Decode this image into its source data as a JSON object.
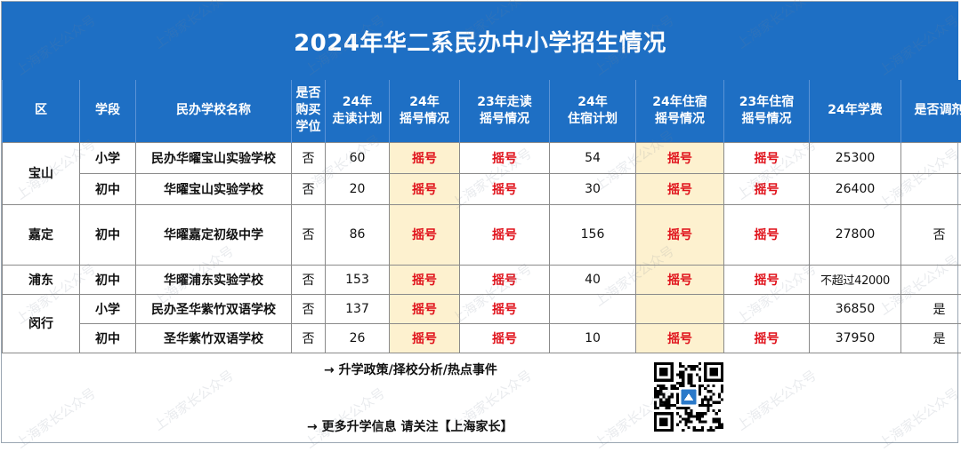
{
  "title": "2024年华二系民办中小学招生情况",
  "table": {
    "headers": {
      "district": "区",
      "stage": "学段",
      "school": "民办学校名称",
      "purchase": "是否\n购买\n学位",
      "walk_plan": "24年\n走读计划",
      "lottery24": "24年\n摇号情况",
      "walk_lottery23": "23年走读\n摇号情况",
      "board_plan": "24年\n住宿计划",
      "board_lottery24": "24年住宿\n摇号情况",
      "board_lottery23": "23年住宿\n摇号情况",
      "fee": "24年学费",
      "adjust": "是否调剂"
    },
    "rows": [
      {
        "district": "宝山",
        "stage": "小学",
        "school": "民办华曜宝山实验学校",
        "purchase": "否",
        "walk_plan": "60",
        "lottery24": "摇号",
        "walk_lottery23": "摇号",
        "board_plan": "54",
        "board_lottery24": "摇号",
        "board_lottery23": "摇号",
        "fee": "25300",
        "adjust": ""
      },
      {
        "district": "",
        "stage": "初中",
        "school": "华曜宝山实验学校",
        "purchase": "否",
        "walk_plan": "20",
        "lottery24": "摇号",
        "walk_lottery23": "摇号",
        "board_plan": "30",
        "board_lottery24": "摇号",
        "board_lottery23": "摇号",
        "fee": "26400",
        "adjust": ""
      },
      {
        "district": "嘉定",
        "stage": "初中",
        "school": "华曜嘉定初级中学",
        "purchase": "否",
        "walk_plan": "86",
        "lottery24": "摇号",
        "walk_lottery23": "摇号",
        "board_plan": "156",
        "board_lottery24": "摇号",
        "board_lottery23": "摇号",
        "fee": "27800",
        "adjust": "否"
      },
      {
        "district": "浦东",
        "stage": "初中",
        "school": "华曜浦东实验学校",
        "purchase": "否",
        "walk_plan": "153",
        "lottery24": "摇号",
        "walk_lottery23": "摇号",
        "board_plan": "40",
        "board_lottery24": "摇号",
        "board_lottery23": "摇号",
        "fee": "不超过42000",
        "adjust": ""
      },
      {
        "district": "闵行",
        "stage": "小学",
        "school": "民办圣华紫竹双语学校",
        "purchase": "否",
        "walk_plan": "137",
        "lottery24": "摇号",
        "walk_lottery23": "摇号",
        "board_plan": "",
        "board_lottery24": "",
        "board_lottery23": "",
        "fee": "36850",
        "adjust": "是"
      },
      {
        "district": "",
        "stage": "初中",
        "school": "圣华紫竹双语学校",
        "purchase": "否",
        "walk_plan": "26",
        "lottery24": "摇号",
        "walk_lottery23": "摇号",
        "board_plan": "10",
        "board_lottery24": "摇号",
        "board_lottery23": "摇号",
        "fee": "37950",
        "adjust": "是"
      }
    ]
  },
  "footer": {
    "line1": "→ 升学政策/择校分析/热点事件",
    "line2": "→ 更多升学信息 请关注【上海家长】"
  },
  "watermark": "上海家长公众号",
  "colors": {
    "header_blue": "#1e6fc4",
    "highlight": "#fdf1cf",
    "lottery_red": "#e0121b"
  }
}
